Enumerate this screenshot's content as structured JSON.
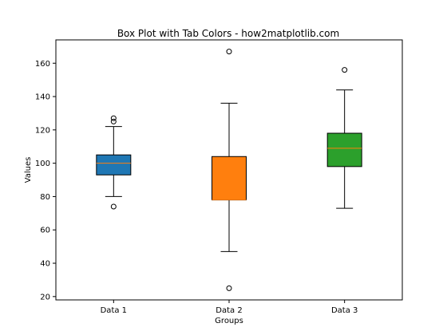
{
  "chart_data": {
    "type": "box",
    "title": "Box Plot with Tab Colors - how2matplotlib.com",
    "xlabel": "Groups",
    "ylabel": "Values",
    "ylim": [
      18,
      174
    ],
    "yticks": [
      20,
      40,
      60,
      80,
      100,
      120,
      140,
      160
    ],
    "categories": [
      "Data 1",
      "Data 2",
      "Data 3"
    ],
    "grid": false,
    "boxes": [
      {
        "label": "Data 1",
        "color": "#1f77b4",
        "whisker_low": 80,
        "q1": 93,
        "median": 100,
        "q3": 105,
        "whisker_high": 122,
        "outliers": [
          74,
          125,
          127
        ]
      },
      {
        "label": "Data 2",
        "color": "#ff7f0e",
        "whisker_low": 47,
        "q1": 78,
        "median": 78,
        "q3": 104,
        "whisker_high": 136,
        "outliers": [
          25,
          167
        ]
      },
      {
        "label": "Data 3",
        "color": "#2ca02c",
        "whisker_low": 73,
        "q1": 98,
        "median": 109,
        "q3": 118,
        "whisker_high": 144,
        "outliers": [
          156
        ]
      }
    ],
    "median_color": "#ff7f0e"
  }
}
